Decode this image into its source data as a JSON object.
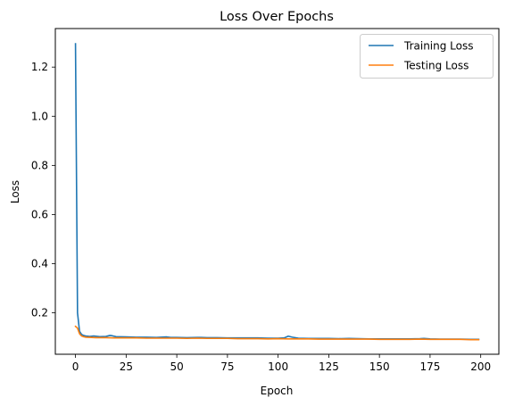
{
  "chart_data": {
    "type": "line",
    "title": "Loss Over Epochs",
    "xlabel": "Epoch",
    "ylabel": "Loss",
    "xlim": [
      -9.95,
      208.95
    ],
    "ylim": [
      0.0316,
      1.3568
    ],
    "xticks": [
      0,
      25,
      50,
      75,
      100,
      125,
      150,
      175,
      200
    ],
    "xtick_labels": [
      "0",
      "25",
      "50",
      "75",
      "100",
      "125",
      "150",
      "175",
      "200"
    ],
    "yticks": [
      0.2,
      0.4,
      0.6,
      0.8,
      1.0,
      1.2
    ],
    "ytick_labels": [
      "0.2",
      "0.4",
      "0.6",
      "0.8",
      "1.0",
      "1.2"
    ],
    "grid": false,
    "legend_position": "top-right",
    "series": [
      {
        "name": "Training Loss",
        "color": "#1f77b4",
        "points": [
          [
            0,
            1.295
          ],
          [
            1,
            0.2
          ],
          [
            2,
            0.125
          ],
          [
            3,
            0.112
          ],
          [
            4,
            0.108
          ],
          [
            5,
            0.106
          ],
          [
            7,
            0.104
          ],
          [
            9,
            0.106
          ],
          [
            12,
            0.103
          ],
          [
            15,
            0.104
          ],
          [
            17,
            0.108
          ],
          [
            18,
            0.107
          ],
          [
            20,
            0.103
          ],
          [
            25,
            0.102
          ],
          [
            30,
            0.101
          ],
          [
            35,
            0.101
          ],
          [
            40,
            0.1
          ],
          [
            45,
            0.102
          ],
          [
            47,
            0.1
          ],
          [
            50,
            0.1
          ],
          [
            55,
            0.099
          ],
          [
            60,
            0.1
          ],
          [
            62,
            0.1
          ],
          [
            65,
            0.099
          ],
          [
            70,
            0.099
          ],
          [
            75,
            0.098
          ],
          [
            80,
            0.098
          ],
          [
            85,
            0.098
          ],
          [
            90,
            0.098
          ],
          [
            95,
            0.097
          ],
          [
            100,
            0.097
          ],
          [
            103,
            0.098
          ],
          [
            105,
            0.105
          ],
          [
            107,
            0.101
          ],
          [
            110,
            0.097
          ],
          [
            115,
            0.096
          ],
          [
            120,
            0.096
          ],
          [
            125,
            0.096
          ],
          [
            130,
            0.095
          ],
          [
            135,
            0.096
          ],
          [
            140,
            0.095
          ],
          [
            145,
            0.094
          ],
          [
            150,
            0.094
          ],
          [
            155,
            0.094
          ],
          [
            160,
            0.094
          ],
          [
            165,
            0.094
          ],
          [
            170,
            0.095
          ],
          [
            172,
            0.096
          ],
          [
            175,
            0.094
          ],
          [
            180,
            0.093
          ],
          [
            185,
            0.093
          ],
          [
            190,
            0.093
          ],
          [
            195,
            0.092
          ],
          [
            199,
            0.092
          ]
        ]
      },
      {
        "name": "Testing Loss",
        "color": "#ff7f0e",
        "points": [
          [
            0,
            0.145
          ],
          [
            1,
            0.138
          ],
          [
            2,
            0.115
          ],
          [
            3,
            0.106
          ],
          [
            4,
            0.103
          ],
          [
            5,
            0.101
          ],
          [
            8,
            0.1
          ],
          [
            10,
            0.099
          ],
          [
            15,
            0.099
          ],
          [
            20,
            0.098
          ],
          [
            25,
            0.098
          ],
          [
            30,
            0.098
          ],
          [
            35,
            0.097
          ],
          [
            40,
            0.097
          ],
          [
            45,
            0.097
          ],
          [
            50,
            0.097
          ],
          [
            55,
            0.096
          ],
          [
            60,
            0.097
          ],
          [
            65,
            0.096
          ],
          [
            70,
            0.096
          ],
          [
            75,
            0.096
          ],
          [
            80,
            0.095
          ],
          [
            85,
            0.095
          ],
          [
            90,
            0.095
          ],
          [
            95,
            0.094
          ],
          [
            100,
            0.095
          ],
          [
            105,
            0.094
          ],
          [
            110,
            0.094
          ],
          [
            115,
            0.094
          ],
          [
            120,
            0.093
          ],
          [
            125,
            0.093
          ],
          [
            130,
            0.093
          ],
          [
            135,
            0.093
          ],
          [
            140,
            0.093
          ],
          [
            145,
            0.093
          ],
          [
            150,
            0.092
          ],
          [
            155,
            0.092
          ],
          [
            160,
            0.092
          ],
          [
            165,
            0.092
          ],
          [
            170,
            0.093
          ],
          [
            175,
            0.092
          ],
          [
            180,
            0.092
          ],
          [
            185,
            0.092
          ],
          [
            190,
            0.092
          ],
          [
            195,
            0.091
          ],
          [
            199,
            0.091
          ]
        ]
      }
    ]
  }
}
